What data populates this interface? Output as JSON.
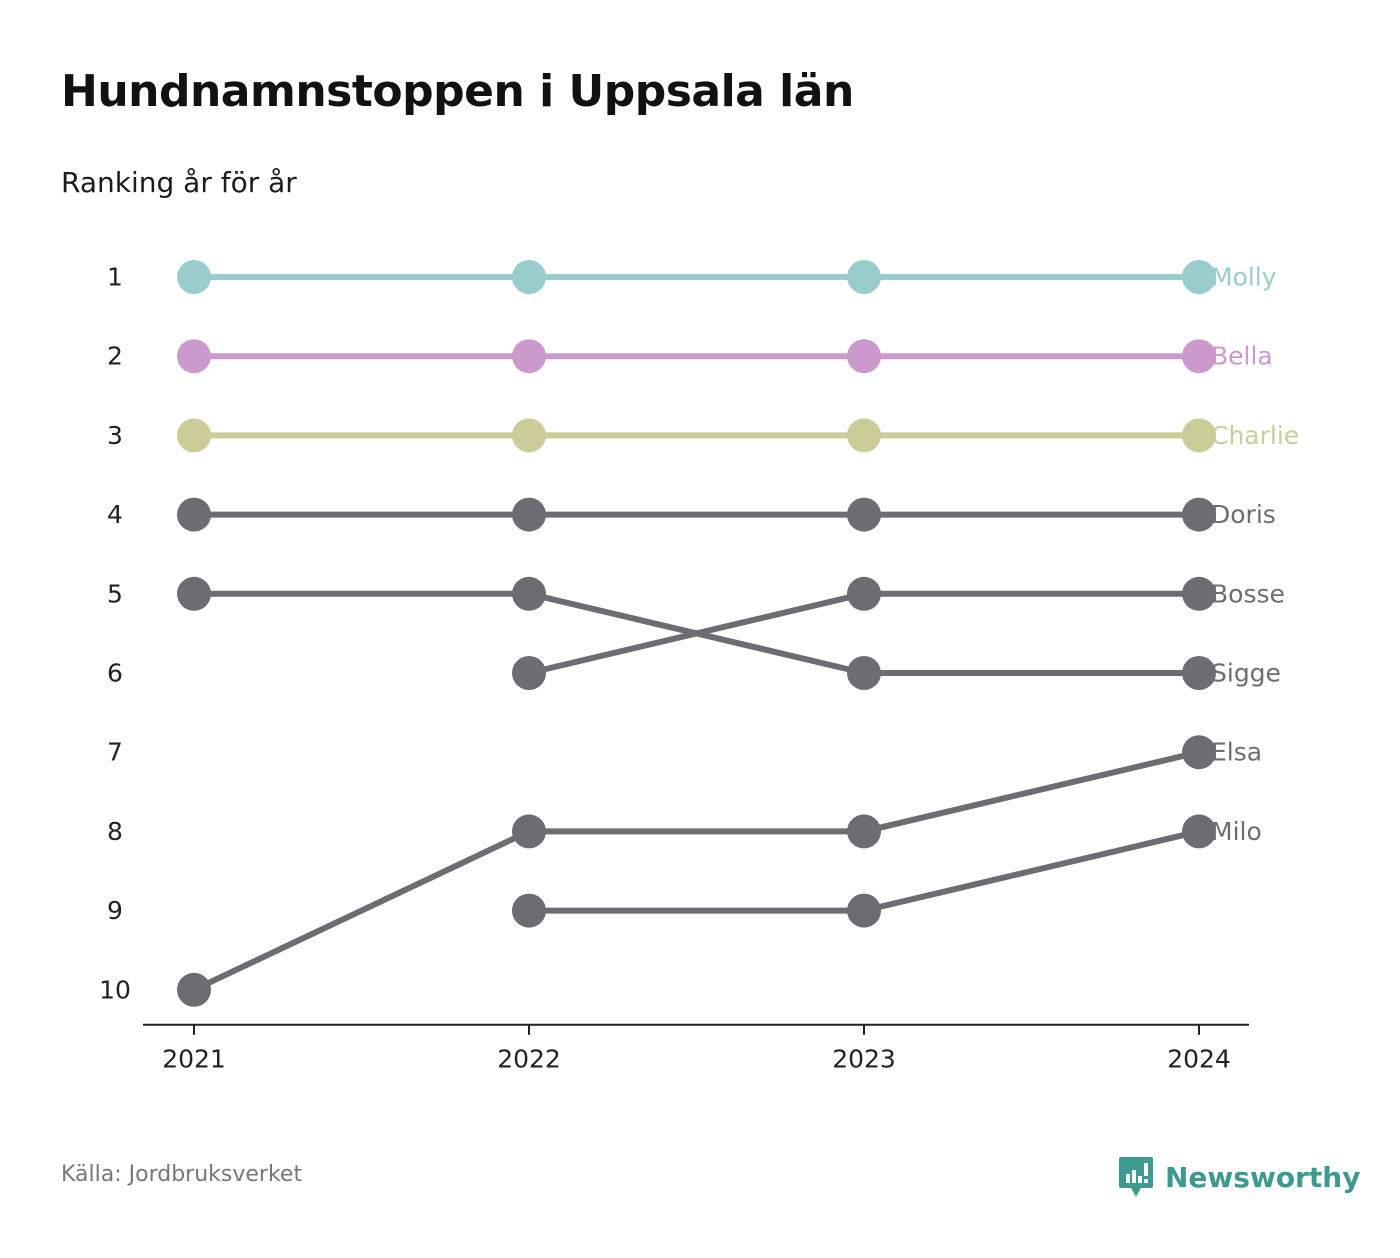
{
  "title": "Hundnamnstoppen i Uppsala län",
  "subtitle": "Ranking år för år",
  "source": "Källa: Jordbruksverket",
  "brand": "Newsworthy",
  "colors": {
    "molly": "#99cdcc",
    "bella": "#cc99cc",
    "charlie": "#cccc99",
    "default": "#6d6c72",
    "brand": "#3d9a8f"
  },
  "chart_data": {
    "type": "line",
    "x": [
      "2021",
      "2022",
      "2023",
      "2024"
    ],
    "y_ticks": [
      "1",
      "2",
      "3",
      "4",
      "5",
      "6",
      "7",
      "8",
      "9",
      "10"
    ],
    "ylim": [
      1,
      10
    ],
    "y_inverted": true,
    "legend": "end-labels",
    "grid": false,
    "series": [
      {
        "name": "Molly",
        "color": "#99cdcc",
        "values": [
          1,
          1,
          1,
          1
        ]
      },
      {
        "name": "Bella",
        "color": "#cc99cc",
        "values": [
          2,
          2,
          2,
          2
        ]
      },
      {
        "name": "Charlie",
        "color": "#cccc99",
        "values": [
          3,
          3,
          3,
          3
        ]
      },
      {
        "name": "Doris",
        "color": "#6d6c72",
        "values": [
          4,
          4,
          4,
          4
        ]
      },
      {
        "name": "Bosse",
        "color": "#6d6c72",
        "values": [
          null,
          6,
          5,
          5
        ]
      },
      {
        "name": "Sigge",
        "color": "#6d6c72",
        "values": [
          5,
          5,
          6,
          6
        ]
      },
      {
        "name": "Elsa",
        "color": "#6d6c72",
        "values": [
          10,
          8,
          8,
          7
        ]
      },
      {
        "name": "Milo",
        "color": "#6d6c72",
        "values": [
          null,
          9,
          9,
          8
        ]
      }
    ]
  }
}
